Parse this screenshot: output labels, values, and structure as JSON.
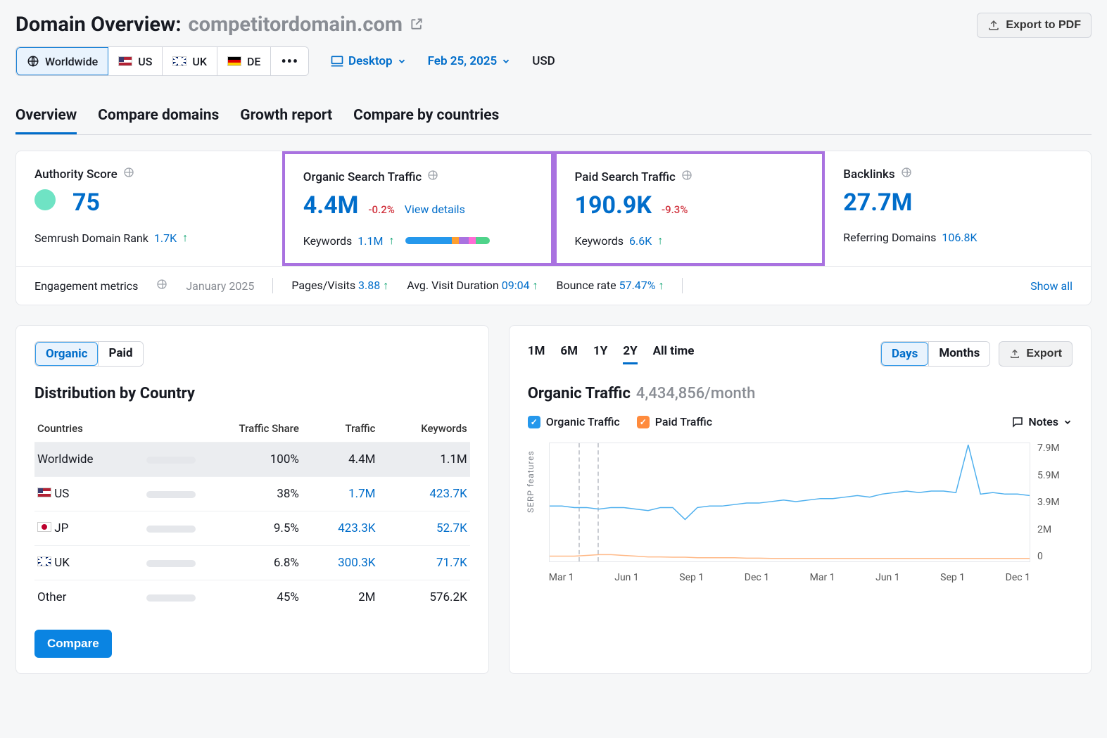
{
  "header": {
    "title_prefix": "Domain Overview:",
    "domain": "competitordomain.com",
    "export_label": "Export to PDF"
  },
  "regions": {
    "worldwide": "Worldwide",
    "us": "US",
    "uk": "UK",
    "de": "DE"
  },
  "controls": {
    "device": "Desktop",
    "date": "Feb 25, 2025",
    "currency": "USD"
  },
  "tabs": {
    "overview": "Overview",
    "compare_domains": "Compare domains",
    "growth_report": "Growth report",
    "compare_countries": "Compare by countries"
  },
  "metrics": {
    "authority": {
      "title": "Authority Score",
      "value": "75",
      "sub_label": "Semrush Domain Rank",
      "sub_value": "1.7K"
    },
    "organic": {
      "title": "Organic Search Traffic",
      "value": "4.4M",
      "delta": "-0.2%",
      "view_details": "View details",
      "sub_label": "Keywords",
      "sub_value": "1.1M",
      "bar_segments": [
        {
          "color": "#2598ec",
          "pct": 55
        },
        {
          "color": "#ff9f2e",
          "pct": 8
        },
        {
          "color": "#a972e0",
          "pct": 12
        },
        {
          "color": "#ff6ad5",
          "pct": 8
        },
        {
          "color": "#4fd38a",
          "pct": 17
        }
      ]
    },
    "paid": {
      "title": "Paid Search Traffic",
      "value": "190.9K",
      "delta": "-9.3%",
      "sub_label": "Keywords",
      "sub_value": "6.6K"
    },
    "backlinks": {
      "title": "Backlinks",
      "value": "27.7M",
      "sub_label": "Referring Domains",
      "sub_value": "106.8K"
    }
  },
  "engagement": {
    "label": "Engagement metrics",
    "date": "January 2025",
    "pages_visits_label": "Pages/Visits",
    "pages_visits_value": "3.88",
    "avg_duration_label": "Avg. Visit Duration",
    "avg_duration_value": "09:04",
    "bounce_label": "Bounce rate",
    "bounce_value": "57.47%",
    "show_all": "Show all"
  },
  "distribution": {
    "seg_organic": "Organic",
    "seg_paid": "Paid",
    "title": "Distribution by Country",
    "col_countries": "Countries",
    "col_share": "Traffic Share",
    "col_traffic": "Traffic",
    "col_keywords": "Keywords",
    "rows": [
      {
        "name": "Worldwide",
        "flag": "",
        "share_pct": 100,
        "share_label": "100%",
        "traffic": "4.4M",
        "keywords": "1.1M",
        "hl": true,
        "link": false
      },
      {
        "name": "US",
        "flag": "us",
        "share_pct": 38,
        "share_label": "38%",
        "traffic": "1.7M",
        "keywords": "423.7K",
        "hl": false,
        "link": true
      },
      {
        "name": "JP",
        "flag": "jp",
        "share_pct": 9.5,
        "share_label": "9.5%",
        "traffic": "423.3K",
        "keywords": "52.7K",
        "hl": false,
        "link": true
      },
      {
        "name": "UK",
        "flag": "uk",
        "share_pct": 6.8,
        "share_label": "6.8%",
        "traffic": "300.3K",
        "keywords": "71.7K",
        "hl": false,
        "link": true
      },
      {
        "name": "Other",
        "flag": "",
        "share_pct": 45,
        "share_label": "45%",
        "traffic": "2M",
        "keywords": "576.2K",
        "hl": false,
        "link": false
      }
    ],
    "compare_btn": "Compare"
  },
  "traffic_chart": {
    "ranges": {
      "m1": "1M",
      "m6": "6M",
      "y1": "1Y",
      "y2": "2Y",
      "all": "All time"
    },
    "active_range": "y2",
    "granularity": {
      "days": "Days",
      "months": "Months"
    },
    "export": "Export",
    "title": "Organic Traffic",
    "subtitle": "4,434,856/month",
    "legend_organic": "Organic Traffic",
    "legend_paid": "Paid Traffic",
    "notes": "Notes",
    "serp_label": "SERP features",
    "y_ticks": [
      "7.9M",
      "5.9M",
      "3.9M",
      "2M",
      "0"
    ],
    "x_ticks": [
      "Mar 1",
      "Jun 1",
      "Sep 1",
      "Dec 1",
      "Mar 1",
      "Jun 1",
      "Sep 1",
      "Dec 1"
    ],
    "colors": {
      "organic": "#4fb0ee",
      "paid": "#ffb987",
      "grid": "#e5e7eb",
      "dash": "#c9ccd2"
    },
    "organic_series": [
      3.7,
      3.7,
      3.6,
      3.6,
      3.5,
      3.6,
      3.6,
      3.5,
      3.4,
      3.6,
      3.6,
      2.8,
      3.6,
      3.7,
      3.7,
      3.8,
      3.9,
      3.9,
      4.0,
      4.1,
      4.0,
      4.1,
      4.2,
      4.2,
      4.3,
      4.4,
      4.3,
      4.5,
      4.6,
      4.7,
      4.6,
      4.7,
      4.7,
      4.6,
      7.8,
      4.5,
      4.6,
      4.5,
      4.5,
      4.4
    ],
    "paid_series": [
      0.35,
      0.35,
      0.35,
      0.4,
      0.45,
      0.45,
      0.4,
      0.35,
      0.3,
      0.3,
      0.28,
      0.28,
      0.25,
      0.25,
      0.25,
      0.25,
      0.22,
      0.22,
      0.2,
      0.2,
      0.2,
      0.2,
      0.2,
      0.2,
      0.2,
      0.2,
      0.2,
      0.2,
      0.2,
      0.2,
      0.2,
      0.2,
      0.2,
      0.2,
      0.2,
      0.2,
      0.2,
      0.2,
      0.2,
      0.2
    ],
    "y_max": 7.9
  }
}
